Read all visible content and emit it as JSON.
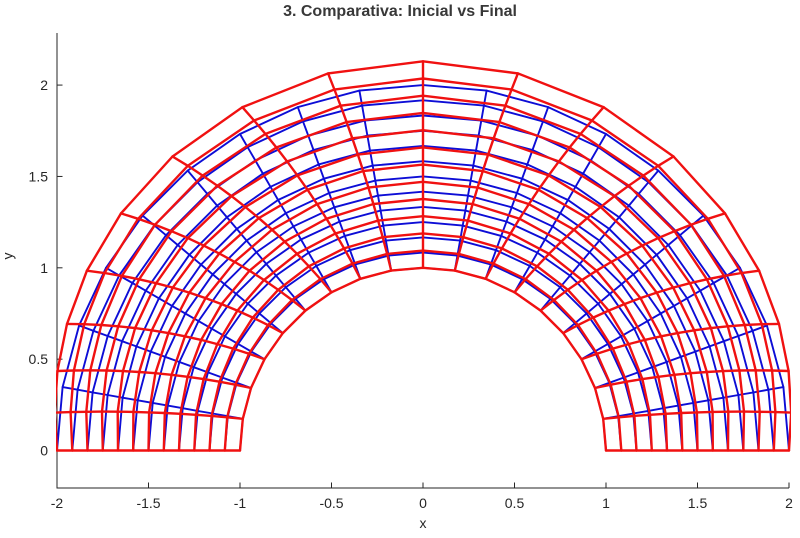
{
  "figure": {
    "title": "3. Comparativa: Inicial vs Final",
    "xlabel": "x",
    "ylabel": "y",
    "title_color": "#383838",
    "axis_color": "#262626",
    "background": "#FFFFFF"
  },
  "chart_data": {
    "type": "line",
    "subtype": "fem-mesh-comparison-half-annulus",
    "title": "3. Comparativa: Inicial vs Final",
    "xlabel": "x",
    "ylabel": "y",
    "xlim": [
      -2,
      2
    ],
    "ylim": [
      -0.205,
      2.285
    ],
    "xticks": [
      -2,
      -1.5,
      -1,
      -0.5,
      0,
      0.5,
      1,
      1.5,
      2
    ],
    "yticks": [
      0,
      0.5,
      1,
      1.5,
      2
    ],
    "grid": false,
    "legend_position": "none",
    "series": [
      {
        "name": "Inicial",
        "role": "initial-mesh",
        "color": "#0D0DD6",
        "line_width": 1.9,
        "mesh": {
          "shape": "half-annulus",
          "r_inner": 1,
          "r_outer": 2,
          "n_rings": 13,
          "n_spokes": 19,
          "theta_start_deg": 0,
          "theta_end_deg": 180
        },
        "deformation": null
      },
      {
        "name": "Final",
        "role": "final-mesh",
        "color": "#F01111",
        "line_width": 2.4,
        "mesh": {
          "shape": "half-annulus",
          "r_inner": 1,
          "r_outer": 2,
          "n_rings": 13,
          "n_spokes": 19,
          "theta_start_deg": 0,
          "theta_end_deg": 180
        },
        "deformation": {
          "radial_coef": 0.13,
          "radial_rule": "r' = r + 0.13*(r-1)*sin(theta)",
          "twist_deg_per_unit_r": 12,
          "twist_rule": "theta' = theta - 12deg*(r-1)*sin(2*theta)",
          "max_outer_radius_at_apex": 2.13,
          "fixed_boundaries": [
            "theta=0 edge",
            "theta=180 edge",
            "inner ring r=1"
          ]
        }
      }
    ]
  }
}
